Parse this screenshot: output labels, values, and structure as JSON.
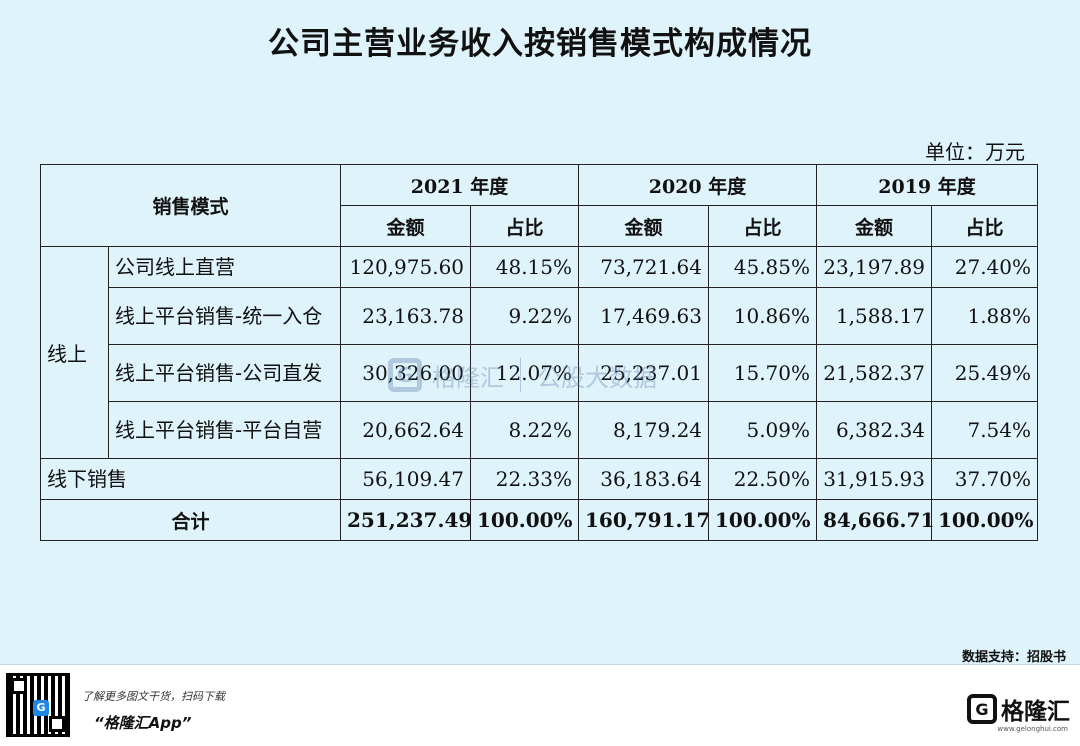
{
  "title": "公司主营业务收入按销售模式构成情况",
  "unit": "单位：万元",
  "table": {
    "mode_header": "销售模式",
    "years": [
      "2021 年度",
      "2020 年度",
      "2019 年度"
    ],
    "amount_header": "金额",
    "ratio_header": "占比",
    "online_label": "线上",
    "rows": [
      {
        "label": "公司线上直营",
        "v": [
          "120,975.60",
          "48.15%",
          "73,721.64",
          "45.85%",
          "23,197.89",
          "27.40%"
        ]
      },
      {
        "label": "线上平台销售-统一入仓",
        "v": [
          "23,163.78",
          "9.22%",
          "17,469.63",
          "10.86%",
          "1,588.17",
          "1.88%"
        ]
      },
      {
        "label": "线上平台销售-公司直发",
        "v": [
          "30,326.00",
          "12.07%",
          "25,237.01",
          "15.70%",
          "21,582.37",
          "25.49%"
        ]
      },
      {
        "label": "线上平台销售-平台自营",
        "v": [
          "20,662.64",
          "8.22%",
          "8,179.24",
          "5.09%",
          "6,382.34",
          "7.54%"
        ]
      }
    ],
    "offline": {
      "label": "线下销售",
      "v": [
        "56,109.47",
        "22.33%",
        "36,183.64",
        "22.50%",
        "31,915.93",
        "37.70%"
      ]
    },
    "total": {
      "label": "合计",
      "v": [
        "251,237.49",
        "100.00%",
        "160,791.17",
        "100.00%",
        "84,666.71",
        "100.00%"
      ]
    }
  },
  "watermark": {
    "name": "格隆汇",
    "sub": "公股大数据"
  },
  "source": "数据支持：招股书",
  "footer": {
    "promo": "了解更多图文干货，扫码下载",
    "app": "“格隆汇App”",
    "brand": "格隆汇",
    "brand_url": "www.gelonghui.com"
  }
}
